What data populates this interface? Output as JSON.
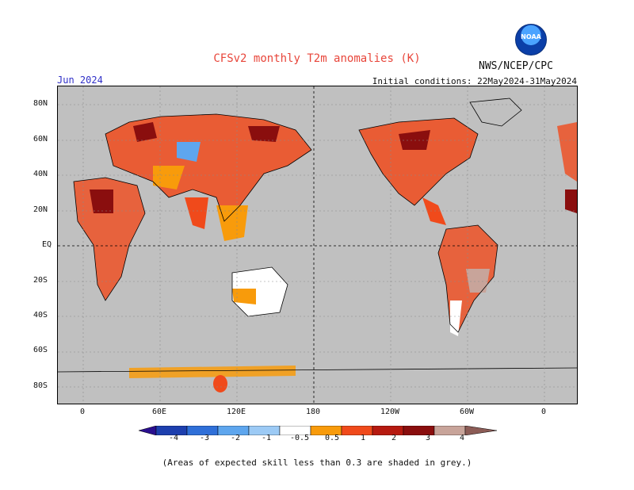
{
  "header": {
    "title": "CFSv2 monthly T2m anomalies (K)",
    "month": "Jun 2024",
    "initial_conditions": "Initial conditions: 22May2024-31May2024",
    "agency": "NWS/NCEP/CPC",
    "logo_text": "NOAA"
  },
  "map": {
    "lat_labels": [
      "80N",
      "60N",
      "40N",
      "20N",
      "EQ",
      "20S",
      "40S",
      "60S",
      "80S"
    ],
    "lon_labels": [
      "0",
      "60E",
      "120E",
      "180",
      "120W",
      "60W",
      "0"
    ],
    "background_color": "#c0c0c0"
  },
  "colorbar": {
    "labels": [
      "-4",
      "-3",
      "-2",
      "-1",
      "-0.5",
      "0.5",
      "1",
      "2",
      "3",
      "4"
    ],
    "colors": [
      "#2a0f8f",
      "#1d3fae",
      "#2f6fd8",
      "#5ea6ee",
      "#9ccaf5",
      "#ffffff",
      "#f89b0b",
      "#f04a1b",
      "#b61a10",
      "#8a0e0e",
      "#c8a49a",
      "#8c5c56"
    ]
  },
  "footnote": "(Areas of expected skill less than 0.3 are shaded in grey.)"
}
